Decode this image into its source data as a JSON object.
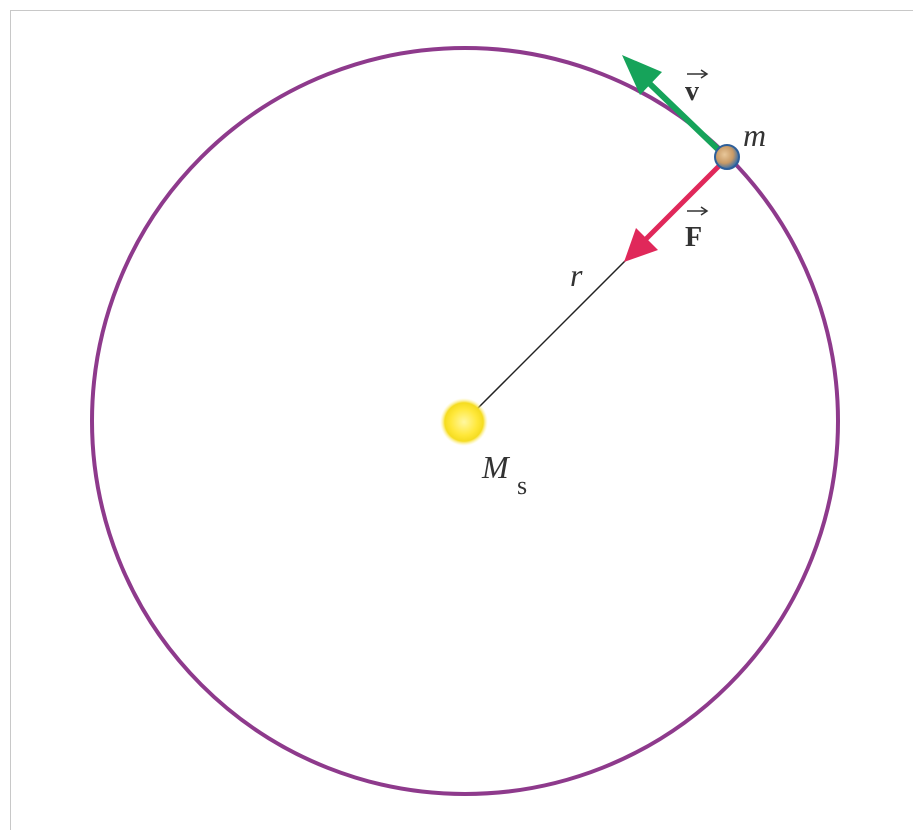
{
  "labels": {
    "velocity": "v",
    "mass": "m",
    "force": "F",
    "radius": "r",
    "sun_mass": "M",
    "sun_mass_subscript": "s"
  }
}
